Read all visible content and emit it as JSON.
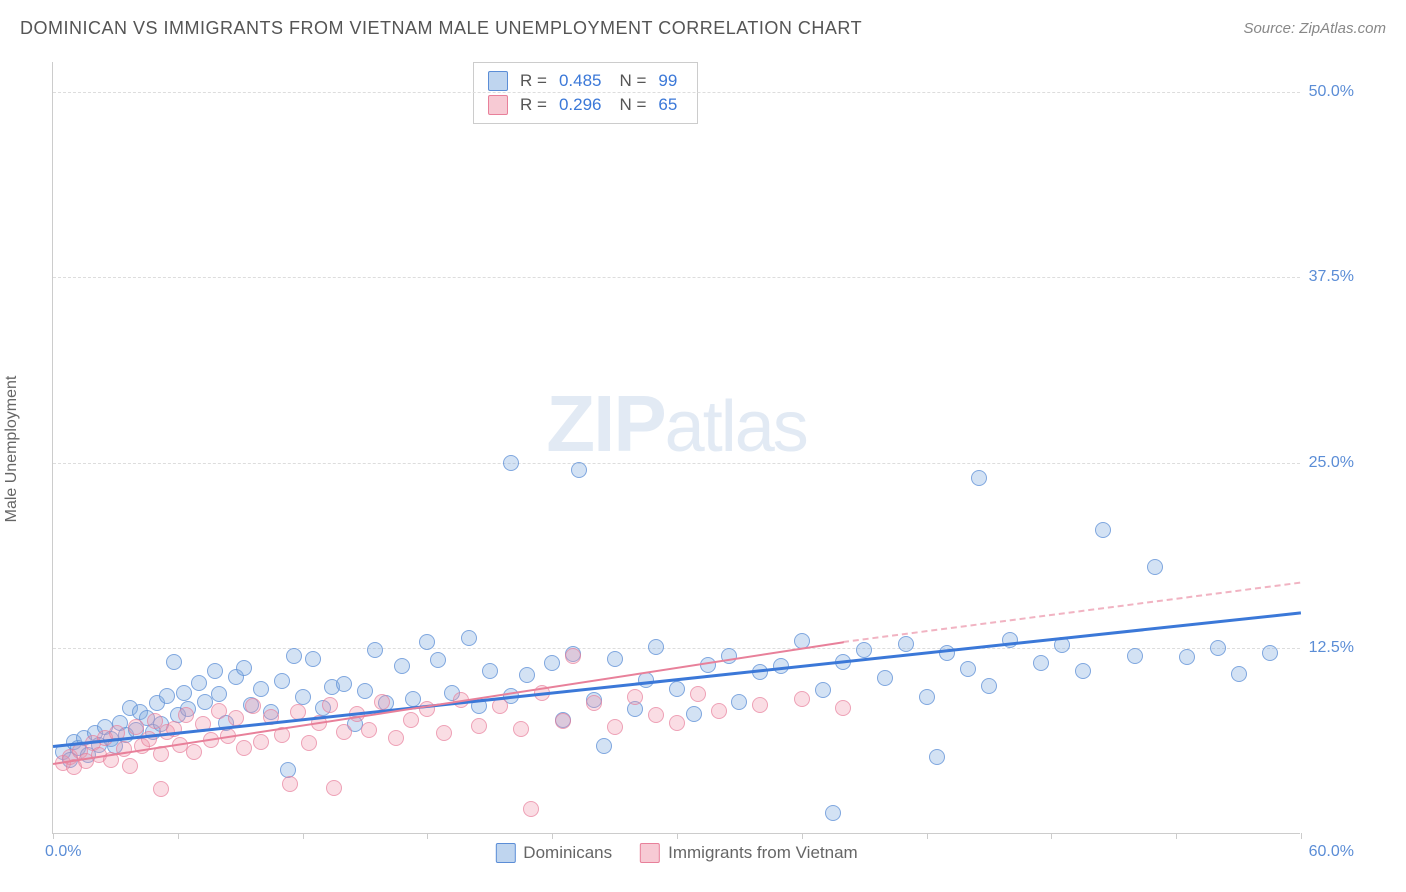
{
  "title": "DOMINICAN VS IMMIGRANTS FROM VIETNAM MALE UNEMPLOYMENT CORRELATION CHART",
  "source": "Source: ZipAtlas.com",
  "y_axis_label": "Male Unemployment",
  "watermark_zip": "ZIP",
  "watermark_atlas": "atlas",
  "chart": {
    "type": "scatter",
    "background_color": "#ffffff",
    "grid_color": "#dddddd",
    "axis_color": "#cccccc",
    "xlim": [
      0,
      60
    ],
    "ylim": [
      0,
      52
    ],
    "x_ticks": [
      0,
      6,
      12,
      18,
      24,
      30,
      36,
      42,
      48,
      54,
      60
    ],
    "y_gridlines": [
      12.5,
      25.0,
      37.5,
      50.0
    ],
    "y_tick_labels": [
      "12.5%",
      "25.0%",
      "37.5%",
      "50.0%"
    ],
    "x_min_label": "0.0%",
    "x_max_label": "60.0%",
    "point_radius": 8,
    "series": [
      {
        "name": "Dominicans",
        "color_fill": "rgba(128,172,224,0.35)",
        "color_stroke": "#5b8dd6",
        "R": "0.485",
        "N": "99",
        "trend": {
          "x1": 0,
          "y1": 6.0,
          "x2": 60,
          "y2": 15.0,
          "color": "#3b78d8",
          "width": 2.5
        },
        "points": [
          [
            0.5,
            5.5
          ],
          [
            0.8,
            5.0
          ],
          [
            1.0,
            6.2
          ],
          [
            1.2,
            5.8
          ],
          [
            1.5,
            6.5
          ],
          [
            1.7,
            5.3
          ],
          [
            2.0,
            6.8
          ],
          [
            2.2,
            6.0
          ],
          [
            2.5,
            7.2
          ],
          [
            2.8,
            6.4
          ],
          [
            3.0,
            5.9
          ],
          [
            3.2,
            7.5
          ],
          [
            3.5,
            6.7
          ],
          [
            3.7,
            8.5
          ],
          [
            4.0,
            7.0
          ],
          [
            4.2,
            8.2
          ],
          [
            4.5,
            7.8
          ],
          [
            4.8,
            6.9
          ],
          [
            5.0,
            8.8
          ],
          [
            5.2,
            7.4
          ],
          [
            5.5,
            9.3
          ],
          [
            5.8,
            11.6
          ],
          [
            6.0,
            8.0
          ],
          [
            6.3,
            9.5
          ],
          [
            6.5,
            8.4
          ],
          [
            7.0,
            10.2
          ],
          [
            7.3,
            8.9
          ],
          [
            7.8,
            11.0
          ],
          [
            8.0,
            9.4
          ],
          [
            8.3,
            7.5
          ],
          [
            8.8,
            10.6
          ],
          [
            9.2,
            11.2
          ],
          [
            9.5,
            8.7
          ],
          [
            10.0,
            9.8
          ],
          [
            10.5,
            8.2
          ],
          [
            11.0,
            10.3
          ],
          [
            11.3,
            4.3
          ],
          [
            11.6,
            12.0
          ],
          [
            12.0,
            9.2
          ],
          [
            12.5,
            11.8
          ],
          [
            13.0,
            8.5
          ],
          [
            13.4,
            9.9
          ],
          [
            14.0,
            10.1
          ],
          [
            14.5,
            7.4
          ],
          [
            15.0,
            9.6
          ],
          [
            15.5,
            12.4
          ],
          [
            16.0,
            8.8
          ],
          [
            16.8,
            11.3
          ],
          [
            17.3,
            9.1
          ],
          [
            18.0,
            12.9
          ],
          [
            18.5,
            11.7
          ],
          [
            19.2,
            9.5
          ],
          [
            20.0,
            13.2
          ],
          [
            20.5,
            8.6
          ],
          [
            21.0,
            11.0
          ],
          [
            22.0,
            9.3
          ],
          [
            22.8,
            10.7
          ],
          [
            22.0,
            25.0
          ],
          [
            24.0,
            11.5
          ],
          [
            24.5,
            7.7
          ],
          [
            25.0,
            12.1
          ],
          [
            25.3,
            24.5
          ],
          [
            26.0,
            9.0
          ],
          [
            26.5,
            5.9
          ],
          [
            27.0,
            11.8
          ],
          [
            28.0,
            8.4
          ],
          [
            28.5,
            10.4
          ],
          [
            29.0,
            12.6
          ],
          [
            30.0,
            9.8
          ],
          [
            30.8,
            8.1
          ],
          [
            31.5,
            11.4
          ],
          [
            32.5,
            12.0
          ],
          [
            33.0,
            8.9
          ],
          [
            34.0,
            10.9
          ],
          [
            35.0,
            11.3
          ],
          [
            36.0,
            13.0
          ],
          [
            37.0,
            9.7
          ],
          [
            37.5,
            1.4
          ],
          [
            38.0,
            11.6
          ],
          [
            39.0,
            12.4
          ],
          [
            40.0,
            10.5
          ],
          [
            41.0,
            12.8
          ],
          [
            42.0,
            9.2
          ],
          [
            42.5,
            5.2
          ],
          [
            43.0,
            12.2
          ],
          [
            44.0,
            11.1
          ],
          [
            44.5,
            24.0
          ],
          [
            45.0,
            10.0
          ],
          [
            46.0,
            13.1
          ],
          [
            47.5,
            11.5
          ],
          [
            48.5,
            12.7
          ],
          [
            49.5,
            11.0
          ],
          [
            50.5,
            20.5
          ],
          [
            52.0,
            12.0
          ],
          [
            53.0,
            18.0
          ],
          [
            54.5,
            11.9
          ],
          [
            56.0,
            12.5
          ],
          [
            57.0,
            10.8
          ],
          [
            58.5,
            12.2
          ]
        ]
      },
      {
        "name": "Immigrants from Vietnam",
        "color_fill": "rgba(240,150,170,0.32)",
        "color_stroke": "#e8809a",
        "R": "0.296",
        "N": "65",
        "trend_solid": {
          "x1": 0,
          "y1": 4.8,
          "x2": 38,
          "y2": 13.0,
          "color": "#e8809a",
          "width": 2
        },
        "trend_dash": {
          "x1": 38,
          "y1": 13.0,
          "x2": 60,
          "y2": 17.0,
          "color": "#e8809a",
          "width": 2
        },
        "points": [
          [
            0.5,
            4.8
          ],
          [
            0.8,
            5.2
          ],
          [
            1.0,
            4.5
          ],
          [
            1.3,
            5.6
          ],
          [
            1.6,
            4.9
          ],
          [
            1.9,
            6.1
          ],
          [
            2.2,
            5.3
          ],
          [
            2.5,
            6.5
          ],
          [
            2.8,
            5.0
          ],
          [
            3.1,
            6.8
          ],
          [
            3.4,
            5.7
          ],
          [
            3.7,
            4.6
          ],
          [
            4.0,
            7.2
          ],
          [
            4.3,
            5.9
          ],
          [
            4.6,
            6.4
          ],
          [
            4.9,
            7.6
          ],
          [
            5.2,
            5.4
          ],
          [
            5.5,
            6.9
          ],
          [
            5.8,
            7.1
          ],
          [
            5.2,
            3.0
          ],
          [
            6.1,
            6.0
          ],
          [
            6.4,
            8.0
          ],
          [
            6.8,
            5.5
          ],
          [
            7.2,
            7.4
          ],
          [
            7.6,
            6.3
          ],
          [
            8.0,
            8.3
          ],
          [
            8.4,
            6.6
          ],
          [
            8.8,
            7.8
          ],
          [
            9.2,
            5.8
          ],
          [
            9.6,
            8.6
          ],
          [
            10.0,
            6.2
          ],
          [
            10.5,
            7.9
          ],
          [
            11.0,
            6.7
          ],
          [
            11.4,
            3.4
          ],
          [
            11.8,
            8.2
          ],
          [
            12.3,
            6.1
          ],
          [
            12.8,
            7.5
          ],
          [
            13.3,
            8.7
          ],
          [
            13.5,
            3.1
          ],
          [
            14.0,
            6.9
          ],
          [
            14.6,
            8.1
          ],
          [
            15.2,
            7.0
          ],
          [
            15.8,
            8.9
          ],
          [
            16.5,
            6.5
          ],
          [
            17.2,
            7.7
          ],
          [
            18.0,
            8.4
          ],
          [
            18.8,
            6.8
          ],
          [
            19.6,
            9.0
          ],
          [
            20.5,
            7.3
          ],
          [
            21.5,
            8.6
          ],
          [
            22.5,
            7.1
          ],
          [
            23.0,
            1.7
          ],
          [
            23.5,
            9.5
          ],
          [
            24.5,
            7.6
          ],
          [
            25.0,
            12.0
          ],
          [
            26.0,
            8.8
          ],
          [
            27.0,
            7.2
          ],
          [
            28.0,
            9.2
          ],
          [
            29.0,
            8.0
          ],
          [
            30.0,
            7.5
          ],
          [
            31.0,
            9.4
          ],
          [
            32.0,
            8.3
          ],
          [
            34.0,
            8.7
          ],
          [
            36.0,
            9.1
          ],
          [
            38.0,
            8.5
          ]
        ]
      }
    ]
  },
  "legend": {
    "r_label": "R =",
    "n_label": "N ="
  },
  "bottom_legend": {
    "label1": "Dominicans",
    "label2": "Immigrants from Vietnam"
  }
}
